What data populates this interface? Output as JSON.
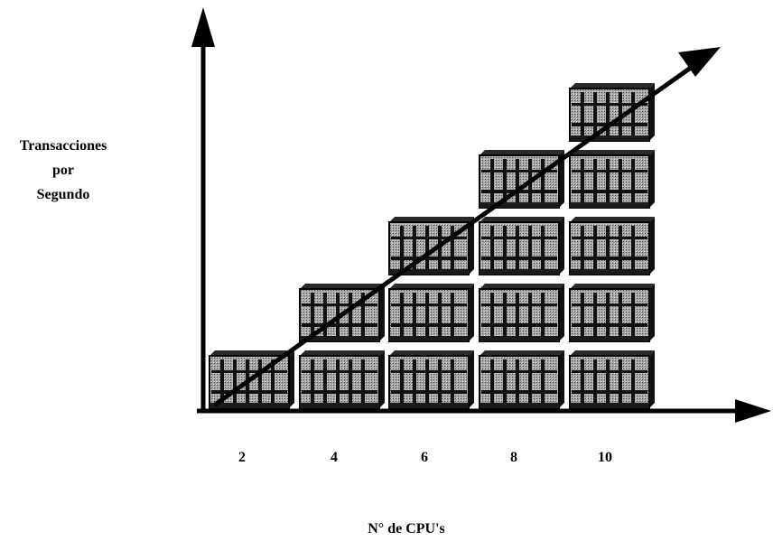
{
  "y_axis_label": [
    "Transacciones",
    "por",
    "Segundo"
  ],
  "x_axis_label": "N° de CPU's",
  "x_ticks": [
    "2",
    "4",
    "6",
    "8",
    "10"
  ],
  "stacks": [
    {
      "cpus": "2",
      "units": 1
    },
    {
      "cpus": "4",
      "units": 2
    },
    {
      "cpus": "6",
      "units": 3
    },
    {
      "cpus": "8",
      "units": 4
    },
    {
      "cpus": "10",
      "units": 5
    }
  ],
  "colors": {
    "ink": "#000000",
    "panel": "#8a8a8a",
    "panel_dark": "#1a1a1a"
  }
}
